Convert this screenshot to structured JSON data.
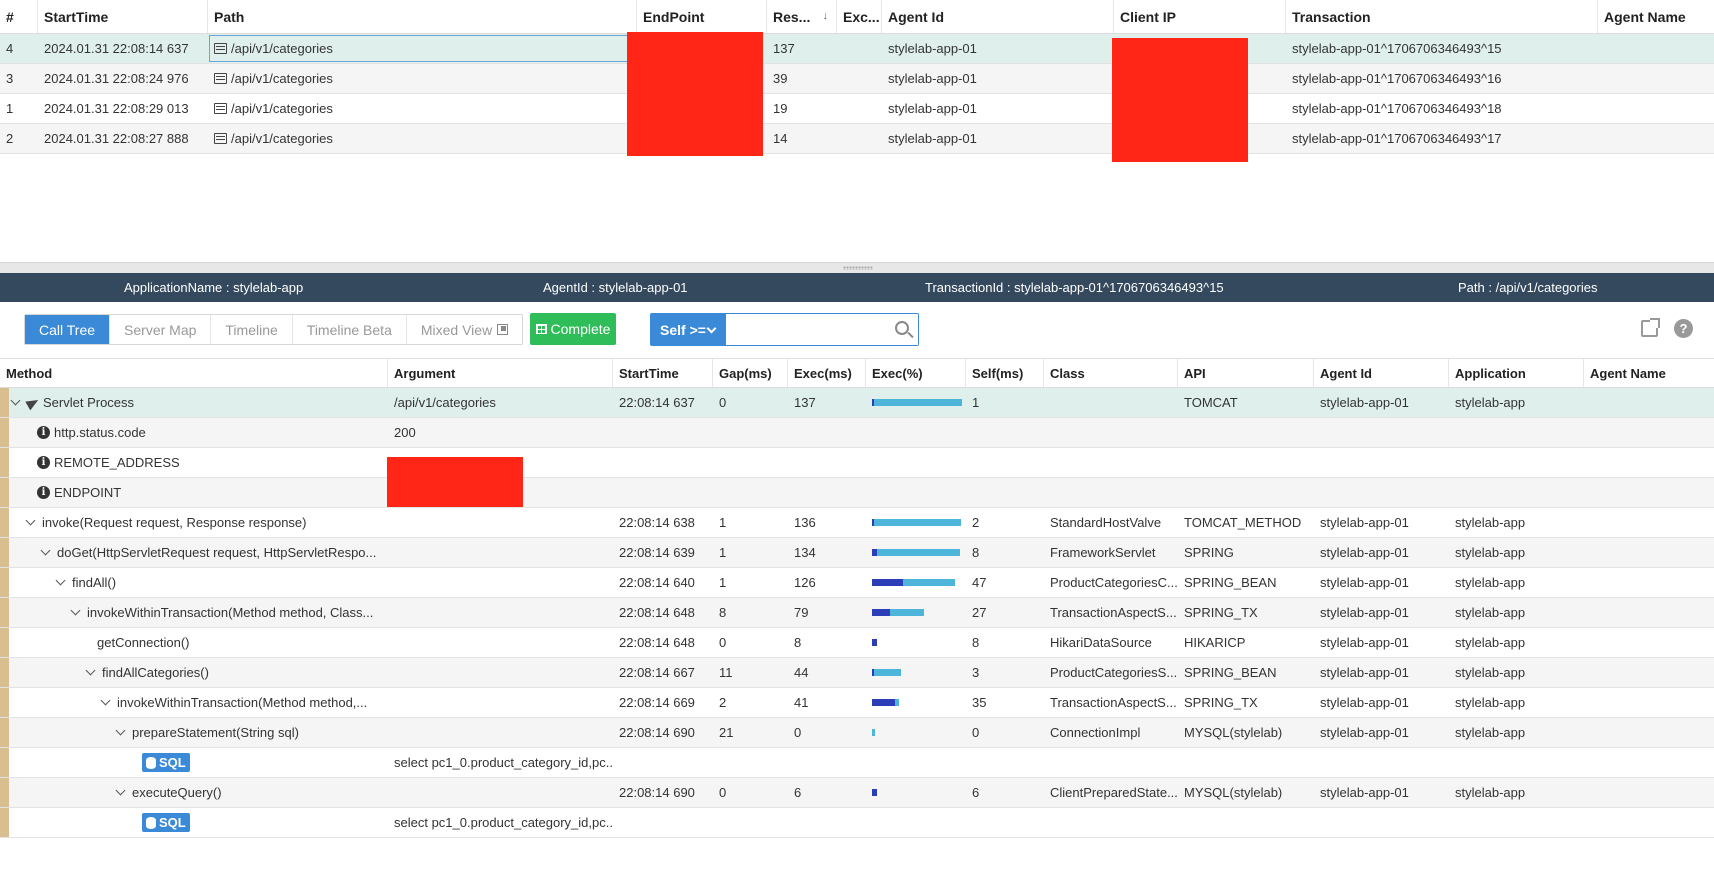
{
  "transaction_list": {
    "columns": [
      "#",
      "StartTime",
      "Path",
      "EndPoint",
      "Res...",
      "Exc...",
      "Agent Id",
      "Client IP",
      "Transaction",
      "Agent Name"
    ],
    "sort_indicator": "↓",
    "rows": [
      {
        "num": "4",
        "start": "2024.01.31 22:08:14 637",
        "path": "/api/v1/categories",
        "endpoint": "",
        "res": "137",
        "exc": "",
        "agent": "stylelab-app-01",
        "client_ip": "",
        "transaction": "stylelab-app-01^1706706346493^15",
        "agent_name": ""
      },
      {
        "num": "3",
        "start": "2024.01.31 22:08:24 976",
        "path": "/api/v1/categories",
        "endpoint": "",
        "res": "39",
        "exc": "",
        "agent": "stylelab-app-01",
        "client_ip": "",
        "transaction": "stylelab-app-01^1706706346493^16",
        "agent_name": ""
      },
      {
        "num": "1",
        "start": "2024.01.31 22:08:29 013",
        "path": "/api/v1/categories",
        "endpoint": "",
        "res": "19",
        "exc": "",
        "agent": "stylelab-app-01",
        "client_ip": "",
        "transaction": "stylelab-app-01^1706706346493^18",
        "agent_name": ""
      },
      {
        "num": "2",
        "start": "2024.01.31 22:08:27 888",
        "path": "/api/v1/categories",
        "endpoint": "",
        "res": "14",
        "exc": "",
        "agent": "stylelab-app-01",
        "client_ip": "",
        "transaction": "stylelab-app-01^1706706346493^17",
        "agent_name": ""
      }
    ]
  },
  "info_bar": {
    "application": "ApplicationName : stylelab-app",
    "agent": "AgentId : stylelab-app-01",
    "transaction": "TransactionId : stylelab-app-01^1706706346493^15",
    "path": "Path : /api/v1/categories"
  },
  "toolbar": {
    "tabs": [
      "Call Tree",
      "Server Map",
      "Timeline",
      "Timeline Beta",
      "Mixed View"
    ],
    "complete_label": "Complete",
    "filter_label": "Self >=",
    "filter_value": "",
    "help_label": "?"
  },
  "call_tree": {
    "columns": [
      "Method",
      "Argument",
      "StartTime",
      "Gap(ms)",
      "Exec(ms)",
      "Exec(%)",
      "Self(ms)",
      "Class",
      "API",
      "Agent Id",
      "Application",
      "Agent Name"
    ],
    "rows": [
      {
        "indent": 0,
        "toggle": true,
        "icon": "plane",
        "method": "Servlet Process",
        "argument": "/api/v1/categories",
        "start": "22:08:14 637",
        "gap": "0",
        "exec": "137",
        "exec_pct": 1.0,
        "self_pct": 0.0,
        "self": "1",
        "class": "",
        "api": "TOMCAT",
        "agent": "stylelab-app-01",
        "app": "stylelab-app",
        "agent_name": ""
      },
      {
        "indent": 1,
        "toggle": false,
        "icon": "info",
        "method": "http.status.code",
        "argument": "200",
        "start": "",
        "gap": "",
        "exec": "",
        "exec_pct": null,
        "self_pct": null,
        "self": "",
        "class": "",
        "api": "",
        "agent": "",
        "app": "",
        "agent_name": ""
      },
      {
        "indent": 1,
        "toggle": false,
        "icon": "info",
        "method": "REMOTE_ADDRESS",
        "argument": "",
        "start": "",
        "gap": "",
        "exec": "",
        "exec_pct": null,
        "self_pct": null,
        "self": "",
        "class": "",
        "api": "",
        "agent": "",
        "app": "",
        "agent_name": ""
      },
      {
        "indent": 1,
        "toggle": false,
        "icon": "info",
        "method": "ENDPOINT",
        "argument": "",
        "start": "",
        "gap": "",
        "exec": "",
        "exec_pct": null,
        "self_pct": null,
        "self": "",
        "class": "",
        "api": "",
        "agent": "",
        "app": "",
        "agent_name": ""
      },
      {
        "indent": 1,
        "toggle": true,
        "icon": "",
        "method": "invoke(Request request, Response response)",
        "argument": "",
        "start": "22:08:14 638",
        "gap": "1",
        "exec": "136",
        "exec_pct": 0.99,
        "self_pct": 0.01,
        "self": "2",
        "class": "StandardHostValve",
        "api": "TOMCAT_METHOD",
        "agent": "stylelab-app-01",
        "app": "stylelab-app",
        "agent_name": ""
      },
      {
        "indent": 2,
        "toggle": true,
        "icon": "",
        "method": "doGet(HttpServletRequest request, HttpServletRespo...",
        "argument": "",
        "start": "22:08:14 639",
        "gap": "1",
        "exec": "134",
        "exec_pct": 0.98,
        "self_pct": 0.06,
        "self": "8",
        "class": "FrameworkServlet",
        "api": "SPRING",
        "agent": "stylelab-app-01",
        "app": "stylelab-app",
        "agent_name": ""
      },
      {
        "indent": 3,
        "toggle": true,
        "icon": "",
        "method": "findAll()",
        "argument": "",
        "start": "22:08:14 640",
        "gap": "1",
        "exec": "126",
        "exec_pct": 0.92,
        "self_pct": 0.34,
        "self": "47",
        "class": "ProductCategoriesC...",
        "api": "SPRING_BEAN",
        "agent": "stylelab-app-01",
        "app": "stylelab-app",
        "agent_name": ""
      },
      {
        "indent": 4,
        "toggle": true,
        "icon": "",
        "method": "invokeWithinTransaction(Method method, Class...",
        "argument": "",
        "start": "22:08:14 648",
        "gap": "8",
        "exec": "79",
        "exec_pct": 0.58,
        "self_pct": 0.2,
        "self": "27",
        "class": "TransactionAspectS...",
        "api": "SPRING_TX",
        "agent": "stylelab-app-01",
        "app": "stylelab-app",
        "agent_name": ""
      },
      {
        "indent": 5,
        "toggle": false,
        "icon": "",
        "method": "getConnection()",
        "argument": "",
        "start": "22:08:14 648",
        "gap": "0",
        "exec": "8",
        "exec_pct": 0.06,
        "self_pct": 0.06,
        "self": "8",
        "class": "HikariDataSource",
        "api": "HIKARICP",
        "agent": "stylelab-app-01",
        "app": "stylelab-app",
        "agent_name": ""
      },
      {
        "indent": 5,
        "toggle": true,
        "icon": "",
        "method": "findAllCategories()",
        "argument": "",
        "start": "22:08:14 667",
        "gap": "11",
        "exec": "44",
        "exec_pct": 0.32,
        "self_pct": 0.02,
        "self": "3",
        "class": "ProductCategoriesS...",
        "api": "SPRING_BEAN",
        "agent": "stylelab-app-01",
        "app": "stylelab-app",
        "agent_name": ""
      },
      {
        "indent": 6,
        "toggle": true,
        "icon": "",
        "method": "invokeWithinTransaction(Method method,...",
        "argument": "",
        "start": "22:08:14 669",
        "gap": "2",
        "exec": "41",
        "exec_pct": 0.3,
        "self_pct": 0.26,
        "self": "35",
        "class": "TransactionAspectS...",
        "api": "SPRING_TX",
        "agent": "stylelab-app-01",
        "app": "stylelab-app",
        "agent_name": ""
      },
      {
        "indent": 7,
        "toggle": true,
        "icon": "",
        "method": "prepareStatement(String sql)",
        "argument": "",
        "start": "22:08:14 690",
        "gap": "21",
        "exec": "0",
        "exec_pct": 0.0,
        "self_pct": 0.0,
        "self": "0",
        "class": "ConnectionImpl",
        "api": "MYSQL(stylelab)",
        "agent": "stylelab-app-01",
        "app": "stylelab-app",
        "agent_name": ""
      },
      {
        "indent": 8,
        "toggle": false,
        "icon": "sql",
        "method": "SQL",
        "argument": "select pc1_0.product_category_id,pc...",
        "start": "",
        "gap": "",
        "exec": "",
        "exec_pct": null,
        "self_pct": null,
        "self": "",
        "class": "",
        "api": "",
        "agent": "",
        "app": "",
        "agent_name": ""
      },
      {
        "indent": 7,
        "toggle": true,
        "icon": "",
        "method": "executeQuery()",
        "argument": "",
        "start": "22:08:14 690",
        "gap": "0",
        "exec": "6",
        "exec_pct": 0.05,
        "self_pct": 0.05,
        "self": "6",
        "class": "ClientPreparedState...",
        "api": "MYSQL(stylelab)",
        "agent": "stylelab-app-01",
        "app": "stylelab-app",
        "agent_name": ""
      },
      {
        "indent": 8,
        "toggle": false,
        "icon": "sql",
        "method": "SQL",
        "argument": "select pc1_0.product_category_id,pc...",
        "start": "",
        "gap": "",
        "exec": "",
        "exec_pct": null,
        "self_pct": null,
        "self": "",
        "class": "",
        "api": "",
        "agent": "",
        "app": "",
        "agent_name": ""
      }
    ]
  },
  "colors": {
    "info_bar_bg": "#34495e",
    "accent_blue": "#3a8ad8",
    "complete_green": "#2ebd59",
    "selected_row": "#dff0ec",
    "redaction": "#ff2517",
    "exec_bar": "#4db5d9",
    "self_bar": "#2c3eb7"
  }
}
